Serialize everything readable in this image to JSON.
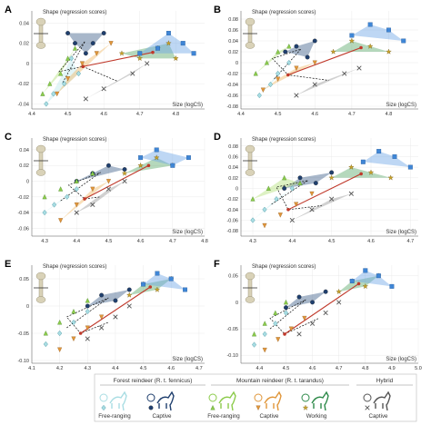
{
  "chart_data": [
    {
      "type": "scatter",
      "panel": "A",
      "ylabel": "Shape (regression scores)",
      "xlabel": "Size (logCS)",
      "xlim": [
        4.4,
        4.88
      ],
      "ylim": [
        -0.045,
        0.052
      ],
      "xticks": [
        4.4,
        4.5,
        4.6,
        4.7,
        4.8
      ],
      "yticks": [
        -0.04,
        -0.02,
        0,
        0.02,
        0.04
      ],
      "bone": "femur",
      "series": [
        {
          "group": "forest-free",
          "points": [
            [
              4.44,
              -0.04
            ],
            [
              4.46,
              -0.03
            ],
            [
              4.49,
              -0.02
            ],
            [
              4.51,
              0.005
            ],
            [
              4.53,
              -0.01
            ]
          ]
        },
        {
          "group": "forest-captive",
          "points": [
            [
              4.5,
              0.03
            ],
            [
              4.52,
              0.02
            ],
            [
              4.55,
              0.01
            ],
            [
              4.57,
              0.02
            ],
            [
              4.6,
              0.03
            ]
          ]
        },
        {
          "group": "mountain-free",
          "points": [
            [
              4.43,
              -0.03
            ],
            [
              4.45,
              -0.02
            ],
            [
              4.48,
              -0.01
            ],
            [
              4.5,
              0.005
            ],
            [
              4.52,
              0.015
            ]
          ]
        },
        {
          "group": "mountain-captive",
          "points": [
            [
              4.47,
              -0.03
            ],
            [
              4.5,
              -0.015
            ],
            [
              4.54,
              0.0
            ],
            [
              4.58,
              0.01
            ],
            [
              4.62,
              0.02
            ]
          ]
        },
        {
          "group": "mountain-working",
          "points": [
            [
              4.65,
              0.01
            ],
            [
              4.7,
              0.005
            ],
            [
              4.75,
              0.015
            ],
            [
              4.78,
              0.02
            ],
            [
              4.8,
              0.005
            ]
          ]
        },
        {
          "group": "hybrid",
          "points": [
            [
              4.55,
              -0.035
            ],
            [
              4.6,
              -0.025
            ],
            [
              4.68,
              -0.01
            ],
            [
              4.72,
              0.0
            ]
          ]
        },
        {
          "group": "reference",
          "points": [
            [
              4.7,
              0.01
            ],
            [
              4.75,
              0.015
            ],
            [
              4.78,
              0.03
            ],
            [
              4.82,
              0.02
            ],
            [
              4.85,
              0.01
            ]
          ]
        }
      ]
    },
    {
      "type": "scatter",
      "panel": "B",
      "ylabel": "Shape (regression scores)",
      "xlabel": "Size (logCS)",
      "xlim": [
        4.4,
        4.88
      ],
      "ylim": [
        -0.085,
        0.095
      ],
      "xticks": [
        4.4,
        4.5,
        4.6,
        4.7,
        4.8
      ],
      "yticks": [
        -0.08,
        -0.06,
        -0.04,
        -0.02,
        0,
        0.02,
        0.04,
        0.06,
        0.08
      ],
      "bone": "humerus",
      "series": [
        {
          "group": "forest-free",
          "points": [
            [
              4.45,
              -0.06
            ],
            [
              4.48,
              -0.04
            ],
            [
              4.5,
              -0.02
            ],
            [
              4.53,
              0.0
            ]
          ]
        },
        {
          "group": "forest-captive",
          "points": [
            [
              4.52,
              0.02
            ],
            [
              4.55,
              0.03
            ],
            [
              4.58,
              0.01
            ],
            [
              4.6,
              0.04
            ]
          ]
        },
        {
          "group": "mountain-free",
          "points": [
            [
              4.44,
              -0.02
            ],
            [
              4.47,
              0.0
            ],
            [
              4.5,
              0.02
            ],
            [
              4.53,
              0.03
            ]
          ]
        },
        {
          "group": "mountain-captive",
          "points": [
            [
              4.46,
              -0.05
            ],
            [
              4.5,
              -0.03
            ],
            [
              4.55,
              -0.01
            ],
            [
              4.6,
              0.0
            ]
          ]
        },
        {
          "group": "mountain-working",
          "points": [
            [
              4.65,
              0.02
            ],
            [
              4.7,
              0.04
            ],
            [
              4.75,
              0.03
            ],
            [
              4.8,
              0.02
            ]
          ]
        },
        {
          "group": "hybrid",
          "points": [
            [
              4.55,
              -0.06
            ],
            [
              4.6,
              -0.04
            ],
            [
              4.68,
              -0.02
            ],
            [
              4.72,
              -0.01
            ]
          ]
        },
        {
          "group": "reference",
          "points": [
            [
              4.7,
              0.05
            ],
            [
              4.75,
              0.07
            ],
            [
              4.8,
              0.06
            ],
            [
              4.84,
              0.04
            ]
          ]
        }
      ]
    },
    {
      "type": "scatter",
      "panel": "C",
      "ylabel": "Shape (regression scores)",
      "xlabel": "Size (logCS)",
      "xlim": [
        4.26,
        4.8
      ],
      "ylim": [
        -0.07,
        0.055
      ],
      "xticks": [
        4.3,
        4.4,
        4.5,
        4.6,
        4.7,
        4.8
      ],
      "yticks": [
        -0.06,
        -0.04,
        -0.02,
        0,
        0.02,
        0.04
      ],
      "bone": "radius",
      "series": [
        {
          "group": "forest-free",
          "points": [
            [
              4.3,
              -0.04
            ],
            [
              4.33,
              -0.03
            ],
            [
              4.37,
              -0.02
            ],
            [
              4.4,
              -0.01
            ]
          ]
        },
        {
          "group": "forest-captive",
          "points": [
            [
              4.4,
              0.0
            ],
            [
              4.45,
              0.01
            ],
            [
              4.5,
              0.02
            ],
            [
              4.55,
              0.015
            ]
          ]
        },
        {
          "group": "mountain-free",
          "points": [
            [
              4.3,
              -0.02
            ],
            [
              4.35,
              -0.01
            ],
            [
              4.4,
              0.0
            ],
            [
              4.45,
              0.01
            ]
          ]
        },
        {
          "group": "mountain-captive",
          "points": [
            [
              4.35,
              -0.05
            ],
            [
              4.4,
              -0.03
            ],
            [
              4.45,
              -0.01
            ],
            [
              4.5,
              0.0
            ]
          ]
        },
        {
          "group": "mountain-working",
          "points": [
            [
              4.55,
              0.01
            ],
            [
              4.6,
              0.02
            ],
            [
              4.65,
              0.03
            ],
            [
              4.7,
              0.02
            ]
          ]
        },
        {
          "group": "hybrid",
          "points": [
            [
              4.4,
              -0.04
            ],
            [
              4.45,
              -0.03
            ],
            [
              4.5,
              -0.01
            ],
            [
              4.55,
              0.0
            ]
          ]
        },
        {
          "group": "reference",
          "points": [
            [
              4.6,
              0.03
            ],
            [
              4.65,
              0.04
            ],
            [
              4.7,
              0.02
            ],
            [
              4.75,
              0.03
            ]
          ]
        }
      ]
    },
    {
      "type": "scatter",
      "panel": "D",
      "ylabel": "Shape (regression scores)",
      "xlabel": "Size (logCS)",
      "xlim": [
        4.27,
        4.72
      ],
      "ylim": [
        -0.09,
        0.095
      ],
      "xticks": [
        4.3,
        4.4,
        4.5,
        4.6,
        4.7
      ],
      "yticks": [
        -0.08,
        -0.06,
        -0.04,
        -0.02,
        0,
        0.02,
        0.04,
        0.06,
        0.08
      ],
      "bone": "metacarpal",
      "series": [
        {
          "group": "forest-free",
          "points": [
            [
              4.3,
              -0.06
            ],
            [
              4.33,
              -0.04
            ],
            [
              4.36,
              -0.02
            ],
            [
              4.4,
              0.0
            ]
          ]
        },
        {
          "group": "forest-captive",
          "points": [
            [
              4.38,
              0.0
            ],
            [
              4.42,
              0.02
            ],
            [
              4.46,
              0.01
            ],
            [
              4.5,
              0.03
            ]
          ]
        },
        {
          "group": "mountain-free",
          "points": [
            [
              4.3,
              -0.02
            ],
            [
              4.34,
              0.0
            ],
            [
              4.38,
              0.02
            ],
            [
              4.42,
              0.01
            ]
          ]
        },
        {
          "group": "mountain-captive",
          "points": [
            [
              4.33,
              -0.07
            ],
            [
              4.37,
              -0.05
            ],
            [
              4.41,
              -0.03
            ],
            [
              4.45,
              -0.01
            ]
          ]
        },
        {
          "group": "mountain-working",
          "points": [
            [
              4.5,
              0.02
            ],
            [
              4.55,
              0.04
            ],
            [
              4.6,
              0.03
            ],
            [
              4.65,
              0.02
            ]
          ]
        },
        {
          "group": "hybrid",
          "points": [
            [
              4.4,
              -0.06
            ],
            [
              4.45,
              -0.04
            ],
            [
              4.5,
              -0.02
            ],
            [
              4.55,
              -0.01
            ]
          ]
        },
        {
          "group": "reference",
          "points": [
            [
              4.58,
              0.05
            ],
            [
              4.62,
              0.07
            ],
            [
              4.66,
              0.06
            ],
            [
              4.7,
              0.04
            ]
          ]
        }
      ]
    },
    {
      "type": "scatter",
      "panel": "E",
      "ylabel": "Shape (regression scores)",
      "xlabel": "Size (logCS)",
      "xlim": [
        4.1,
        4.72
      ],
      "ylim": [
        -0.105,
        0.075
      ],
      "xticks": [
        4.1,
        4.2,
        4.3,
        4.4,
        4.5,
        4.6,
        4.7
      ],
      "yticks": [
        -0.1,
        -0.05,
        0,
        0.05
      ],
      "bone": "tibia",
      "series": [
        {
          "group": "forest-free",
          "points": [
            [
              4.15,
              -0.07
            ],
            [
              4.2,
              -0.05
            ],
            [
              4.25,
              -0.03
            ],
            [
              4.3,
              -0.01
            ]
          ]
        },
        {
          "group": "forest-captive",
          "points": [
            [
              4.3,
              0.0
            ],
            [
              4.35,
              0.02
            ],
            [
              4.4,
              0.01
            ],
            [
              4.45,
              0.03
            ]
          ]
        },
        {
          "group": "mountain-free",
          "points": [
            [
              4.15,
              -0.05
            ],
            [
              4.2,
              -0.03
            ],
            [
              4.25,
              -0.01
            ],
            [
              4.3,
              0.01
            ]
          ]
        },
        {
          "group": "mountain-captive",
          "points": [
            [
              4.2,
              -0.08
            ],
            [
              4.25,
              -0.06
            ],
            [
              4.3,
              -0.04
            ],
            [
              4.35,
              -0.02
            ]
          ]
        },
        {
          "group": "mountain-working",
          "points": [
            [
              4.45,
              0.02
            ],
            [
              4.5,
              0.04
            ],
            [
              4.55,
              0.03
            ],
            [
              4.6,
              0.05
            ]
          ]
        },
        {
          "group": "hybrid",
          "points": [
            [
              4.3,
              -0.06
            ],
            [
              4.35,
              -0.04
            ],
            [
              4.4,
              -0.02
            ],
            [
              4.45,
              0.0
            ]
          ]
        },
        {
          "group": "reference",
          "points": [
            [
              4.5,
              0.04
            ],
            [
              4.55,
              0.06
            ],
            [
              4.6,
              0.05
            ],
            [
              4.65,
              0.03
            ]
          ]
        }
      ]
    },
    {
      "type": "scatter",
      "panel": "F",
      "ylabel": "Shape (regression scores)",
      "xlabel": "Size (logCS)",
      "xlim": [
        4.33,
        5.0
      ],
      "ylim": [
        -0.115,
        0.07
      ],
      "xticks": [
        4.4,
        4.5,
        4.6,
        4.7,
        4.8,
        4.9,
        5.0
      ],
      "yticks": [
        -0.1,
        -0.05,
        0,
        0.05
      ],
      "bone": "metatarsal",
      "series": [
        {
          "group": "forest-free",
          "points": [
            [
              4.38,
              -0.08
            ],
            [
              4.42,
              -0.06
            ],
            [
              4.46,
              -0.04
            ],
            [
              4.5,
              -0.02
            ]
          ]
        },
        {
          "group": "forest-captive",
          "points": [
            [
              4.5,
              -0.01
            ],
            [
              4.55,
              0.01
            ],
            [
              4.6,
              0.0
            ],
            [
              4.65,
              0.02
            ]
          ]
        },
        {
          "group": "mountain-free",
          "points": [
            [
              4.38,
              -0.06
            ],
            [
              4.42,
              -0.04
            ],
            [
              4.46,
              -0.02
            ],
            [
              4.5,
              0.0
            ]
          ]
        },
        {
          "group": "mountain-captive",
          "points": [
            [
              4.42,
              -0.09
            ],
            [
              4.47,
              -0.07
            ],
            [
              4.52,
              -0.05
            ],
            [
              4.57,
              -0.03
            ]
          ]
        },
        {
          "group": "mountain-working",
          "points": [
            [
              4.7,
              0.02
            ],
            [
              4.75,
              0.04
            ],
            [
              4.8,
              0.03
            ],
            [
              4.85,
              0.05
            ]
          ]
        },
        {
          "group": "hybrid",
          "points": [
            [
              4.55,
              -0.06
            ],
            [
              4.6,
              -0.04
            ],
            [
              4.65,
              -0.02
            ],
            [
              4.7,
              0.0
            ]
          ]
        },
        {
          "group": "reference",
          "points": [
            [
              4.75,
              0.04
            ],
            [
              4.8,
              0.06
            ],
            [
              4.85,
              0.05
            ],
            [
              4.9,
              0.03
            ]
          ]
        }
      ]
    }
  ],
  "legend": {
    "groups": [
      {
        "title": "Forest reindeer (R. t. fennicus)",
        "items": [
          {
            "label": "Free-ranging"
          },
          {
            "label": "Captive"
          }
        ]
      },
      {
        "title": "Mountain reindeer (R. t. tarandus)",
        "items": [
          {
            "label": "Free-ranging"
          },
          {
            "label": "Captive"
          },
          {
            "label": "Working"
          }
        ]
      },
      {
        "title": "Hybrid",
        "items": [
          {
            "label": "Captive"
          }
        ]
      }
    ]
  },
  "colors": {
    "forest-free": "#a9dde3",
    "forest-captive": "#1f3f6e",
    "mountain-free": "#8ccb4b",
    "mountain-captive": "#e0963a",
    "mountain-working": "#2e8a4a",
    "hybrid": "#555555",
    "reference": "#3f86d6",
    "mean-line": "#c0392b"
  }
}
